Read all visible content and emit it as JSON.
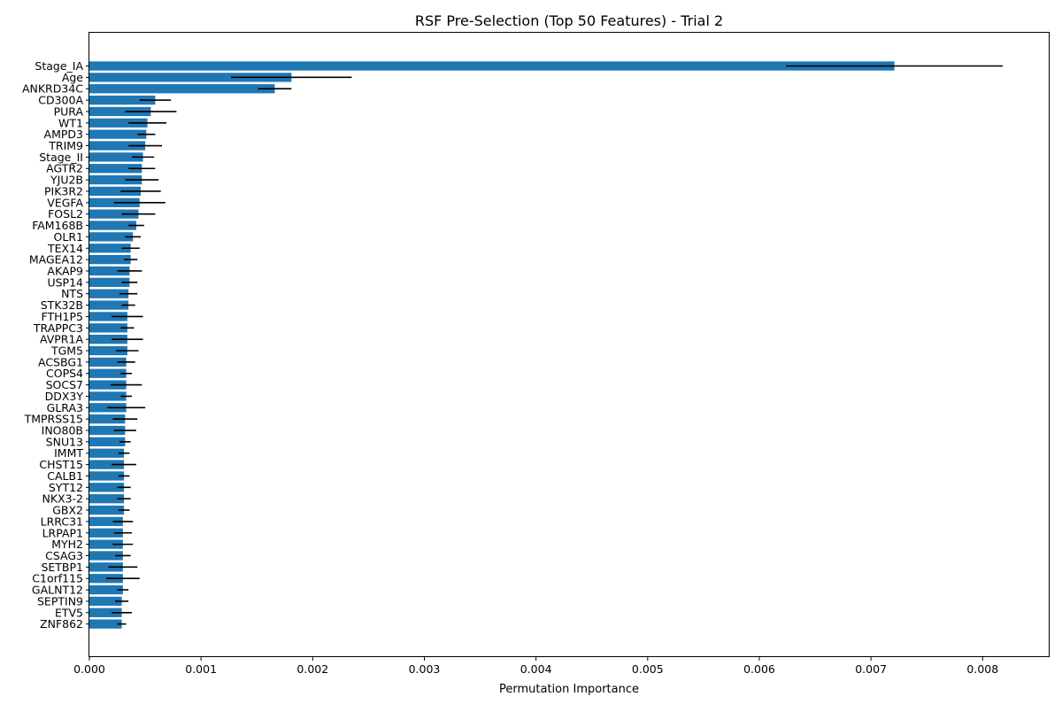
{
  "chart_data": {
    "type": "bar",
    "orientation": "horizontal",
    "title": "RSF Pre-Selection (Top 50 Features) - Trial 2",
    "xlabel": "Permutation Importance",
    "ylabel": "",
    "xlim": [
      0,
      0.0086
    ],
    "x_ticks": [
      "0.000",
      "0.001",
      "0.002",
      "0.003",
      "0.004",
      "0.005",
      "0.006",
      "0.007",
      "0.008"
    ],
    "grid": false,
    "bar_color": "#1f77b4",
    "error_bar_color": "#000000",
    "categories": [
      "Stage_IA",
      "Age",
      "ANKRD34C",
      "CD300A",
      "PURA",
      "WT1",
      "AMPD3",
      "TRIM9",
      "Stage_II",
      "AGTR2",
      "YJU2B",
      "PIK3R2",
      "VEGFA",
      "FOSL2",
      "FAM168B",
      "OLR1",
      "TEX14",
      "MAGEA12",
      "AKAP9",
      "USP14",
      "NTS",
      "STK32B",
      "FTH1P5",
      "TRAPPC3",
      "AVPR1A",
      "TGM5",
      "ACSBG1",
      "COPS4",
      "SOCS7",
      "DDX3Y",
      "GLRA3",
      "TMPRSS15",
      "INO80B",
      "SNU13",
      "IMMT",
      "CHST15",
      "CALB1",
      "SYT12",
      "NKX3-2",
      "GBX2",
      "LRRC31",
      "LRPAP1",
      "MYH2",
      "CSAG3",
      "SETBP1",
      "C1orf115",
      "GALNT12",
      "SEPTIN9",
      "ETV5",
      "ZNF862"
    ],
    "values": [
      0.00721,
      0.00181,
      0.00166,
      0.00059,
      0.00055,
      0.00052,
      0.00051,
      0.0005,
      0.00048,
      0.00047,
      0.00047,
      0.00046,
      0.00045,
      0.00044,
      0.00042,
      0.00039,
      0.00037,
      0.00037,
      0.00036,
      0.00036,
      0.00035,
      0.00035,
      0.00034,
      0.00034,
      0.00034,
      0.00034,
      0.00033,
      0.00033,
      0.00033,
      0.00033,
      0.00033,
      0.00032,
      0.00032,
      0.00032,
      0.00031,
      0.00031,
      0.00031,
      0.00031,
      0.00031,
      0.00031,
      0.0003,
      0.0003,
      0.0003,
      0.0003,
      0.0003,
      0.0003,
      0.0003,
      0.00029,
      0.00029,
      0.00029
    ],
    "errors": [
      0.00097,
      0.00054,
      0.00015,
      0.00014,
      0.00023,
      0.00017,
      8e-05,
      0.00015,
      0.0001,
      0.00012,
      0.00015,
      0.00018,
      0.00023,
      0.00015,
      7e-05,
      7e-05,
      8e-05,
      6e-05,
      0.00011,
      7e-05,
      8e-05,
      6e-05,
      0.00014,
      6e-05,
      0.00014,
      0.0001,
      8e-05,
      5e-05,
      0.00014,
      5e-05,
      0.00017,
      0.00011,
      0.0001,
      5e-05,
      5e-05,
      0.00011,
      5e-05,
      6e-05,
      6e-05,
      5e-05,
      9e-05,
      8e-05,
      9e-05,
      7e-05,
      0.00013,
      0.00015,
      5e-05,
      6e-05,
      9e-05,
      4e-05
    ]
  }
}
